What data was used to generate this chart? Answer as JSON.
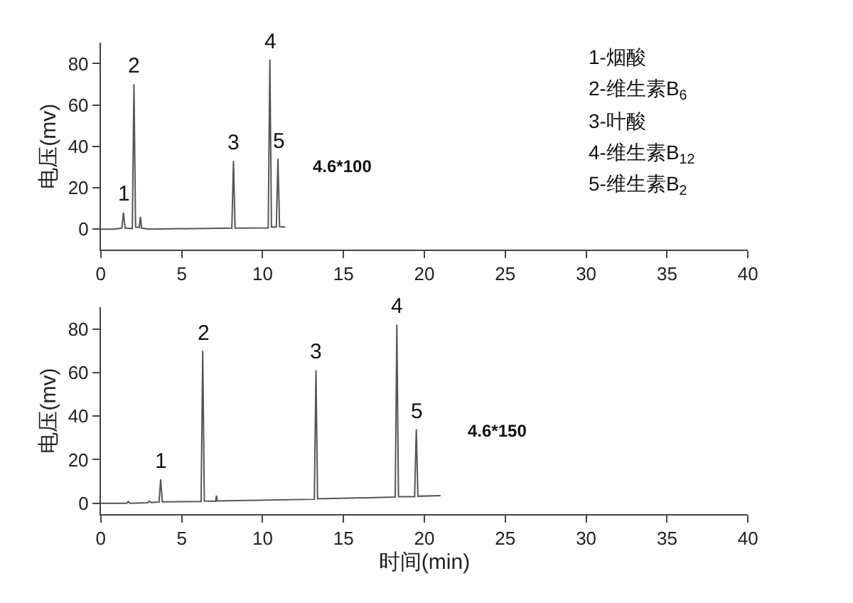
{
  "chart_data": [
    {
      "type": "line",
      "color": "#555555",
      "line_style": "solid",
      "ylabel": "电压(mv)",
      "x": [
        0,
        0.8,
        1.3,
        1.4,
        1.5,
        1.95,
        2.05,
        2.15,
        2.38,
        2.45,
        2.52,
        3,
        8.1,
        8.2,
        8.3,
        10.35,
        10.45,
        10.55,
        10.85,
        10.95,
        11.05,
        11.4
      ],
      "values": [
        0,
        0,
        0.5,
        8,
        0.5,
        0.3,
        70,
        1,
        0.8,
        6,
        0.5,
        0,
        0.5,
        33,
        0.5,
        0.6,
        82,
        1,
        1,
        34,
        1.2,
        1
      ],
      "xlim": [
        0,
        40
      ],
      "xticks": [
        0,
        5,
        10,
        15,
        20,
        25,
        30,
        35,
        40
      ],
      "ylim": [
        -10,
        90
      ],
      "yticks": [
        0,
        20,
        40,
        60,
        80
      ],
      "annotations": [
        {
          "text": "1",
          "x": 1.4,
          "y": 8
        },
        {
          "text": "2",
          "x": 2.05,
          "y": 70
        },
        {
          "text": "3",
          "x": 8.2,
          "y": 33
        },
        {
          "text": "4",
          "x": 10.45,
          "y": 82
        },
        {
          "text": "5",
          "x": 10.95,
          "y": 34
        },
        "4.6*100",
        "1-烟酸",
        "2-维生素B$_{6}$",
        "3-叶酸",
        "4-维生素B$_{12}$",
        "5-维生素B$_{2}$"
      ]
    },
    {
      "type": "line",
      "color": "#555555",
      "line_style": "solid",
      "ylabel": "电压(mv)",
      "xlabel": "时间(min)",
      "x": [
        0,
        1.6,
        1.7,
        1.8,
        2.9,
        3.0,
        3.1,
        3.6,
        3.7,
        3.8,
        6.2,
        6.3,
        6.4,
        7.1,
        7.15,
        7.2,
        13.2,
        13.3,
        13.4,
        18.2,
        18.3,
        18.4,
        19.4,
        19.5,
        19.6,
        21
      ],
      "values": [
        0,
        0,
        0.8,
        0,
        0.2,
        1,
        0.3,
        0.5,
        11,
        0.6,
        0.8,
        70,
        1,
        0.9,
        3.5,
        1,
        1.8,
        61,
        2,
        2.8,
        82,
        3,
        3,
        34,
        3.2,
        3.5
      ],
      "xlim": [
        0,
        40
      ],
      "xticks": [
        0,
        5,
        10,
        15,
        20,
        25,
        30,
        35,
        40
      ],
      "ylim": [
        -5,
        90
      ],
      "yticks": [
        0,
        20,
        40,
        60,
        80
      ],
      "annotations": [
        {
          "text": "1",
          "x": 3.7,
          "y": 11
        },
        {
          "text": "2",
          "x": 6.3,
          "y": 70
        },
        {
          "text": "3",
          "x": 13.3,
          "y": 61
        },
        {
          "text": "4",
          "x": 18.3,
          "y": 82
        },
        {
          "text": "5",
          "x": 19.5,
          "y": 34
        },
        "4.6*150"
      ]
    }
  ]
}
